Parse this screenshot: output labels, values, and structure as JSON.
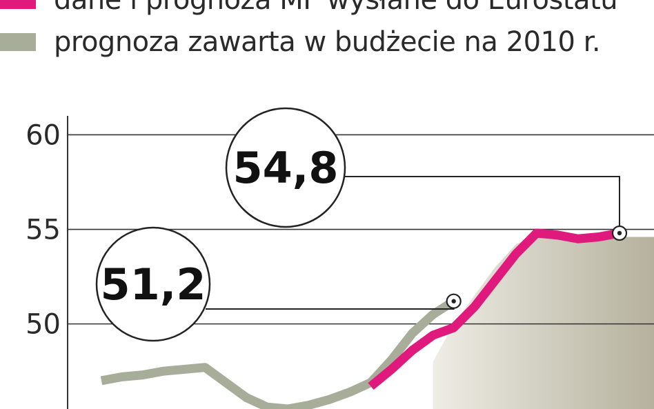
{
  "legend": [
    {
      "label": "dane i prognoza MF wysłane do Eurostatu",
      "color": "#e0197d"
    },
    {
      "label": "prognoza zawarta w budżecie na 2010 r.",
      "color": "#a8ad9a"
    }
  ],
  "chart_data": {
    "type": "line",
    "title": "",
    "xlabel": "",
    "ylabel": "",
    "ylim": [
      45.5,
      61
    ],
    "yticks": [
      50,
      55,
      60
    ],
    "ytick_labels": [
      "50",
      "55",
      "60"
    ],
    "grid": true,
    "legend_position": "top-left",
    "x": [
      1,
      2,
      3,
      4,
      5,
      6,
      7,
      8,
      9,
      10,
      11,
      12,
      13,
      14,
      15,
      16,
      17,
      18,
      19,
      20,
      21,
      22,
      23,
      24,
      25,
      26
    ],
    "series": [
      {
        "name": "prognoza zawarta w budżecie na 2010 r.",
        "style": "line",
        "color": "#a8ad9a",
        "values": [
          47.0,
          47.2,
          47.3,
          47.5,
          47.6,
          47.7,
          46.9,
          46.1,
          45.6,
          45.5,
          45.7,
          46.0,
          46.4,
          46.9,
          48.1,
          49.5,
          50.5,
          51.2,
          null,
          null,
          null,
          null,
          null,
          null,
          null,
          null
        ]
      },
      {
        "name": "dane i prognoza MF wysłane do Eurostatu",
        "style": "line",
        "color": "#e0197d",
        "values": [
          null,
          null,
          null,
          null,
          null,
          null,
          null,
          null,
          null,
          null,
          null,
          null,
          null,
          46.7,
          47.6,
          48.6,
          49.4,
          49.8,
          50.9,
          52.3,
          53.7,
          54.8,
          54.7,
          54.5,
          54.6,
          54.8
        ]
      },
      {
        "name": "",
        "style": "area",
        "color": "#c9c6b4",
        "values": [
          null,
          null,
          null,
          null,
          null,
          null,
          null,
          null,
          null,
          null,
          null,
          null,
          null,
          null,
          null,
          null,
          48.0,
          50.0,
          51.5,
          53.0,
          54.2,
          54.7,
          54.7,
          54.7,
          54.7,
          54.6
        ]
      }
    ],
    "annotations": [
      {
        "text": "51,2",
        "value": 51.2,
        "series": 0,
        "x": 18
      },
      {
        "text": "54,8",
        "value": 54.8,
        "series": 1,
        "x": 26
      }
    ]
  }
}
